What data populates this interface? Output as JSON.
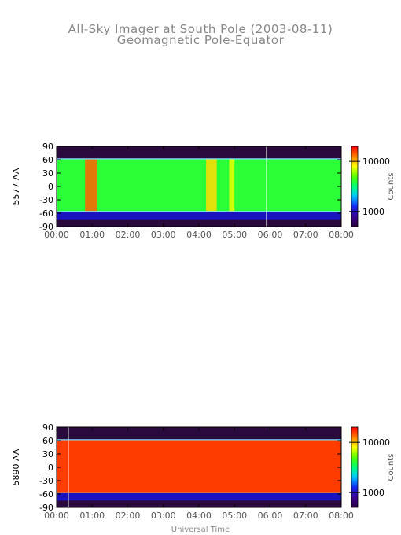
{
  "chart_data": {
    "type": "heatmap",
    "title": "All-Sky Imager at South Pole (2003-08-11)",
    "subtitle": "Geomagnetic Pole-Equator",
    "xlabel": "Universal Time",
    "x_ticks": [
      "00:00",
      "01:00",
      "02:00",
      "03:00",
      "04:00",
      "05:00",
      "06:00",
      "07:00",
      "08:00"
    ],
    "x_range_hours": [
      0,
      8
    ],
    "panels": [
      {
        "ylabel": "5577 AA",
        "y_ticks": [
          "90",
          "60",
          "30",
          "0",
          "-30",
          "-60",
          "-90"
        ],
        "ylim": [
          -90,
          90
        ],
        "colorbar_label": "Counts",
        "colorbar_ticks": [
          "10000",
          "1000"
        ],
        "colorbar_tick_values": [
          10000,
          1000
        ],
        "colorbar_range": [
          500,
          20000
        ],
        "valid_band": [
          -56,
          62
        ],
        "base_counts": 4000,
        "white_lines_hours": [
          5.9
        ],
        "features": [
          {
            "t_start": 0.8,
            "t_end": 1.15,
            "counts": 14000
          },
          {
            "t_start": 4.2,
            "t_end": 4.5,
            "counts": 9000
          },
          {
            "t_start": 4.85,
            "t_end": 5.0,
            "counts": 7500
          }
        ]
      },
      {
        "ylabel": "5890 AA",
        "y_ticks": [
          "90",
          "60",
          "30",
          "0",
          "-30",
          "-60",
          "-90"
        ],
        "ylim": [
          -90,
          90
        ],
        "colorbar_label": "Counts",
        "colorbar_ticks": [
          "10000",
          "1000"
        ],
        "colorbar_tick_values": [
          10000,
          1000
        ],
        "colorbar_range": [
          500,
          20000
        ],
        "valid_band": [
          -57,
          62
        ],
        "base_counts": 16000,
        "white_lines_hours": [
          0.33
        ],
        "features": []
      }
    ]
  }
}
